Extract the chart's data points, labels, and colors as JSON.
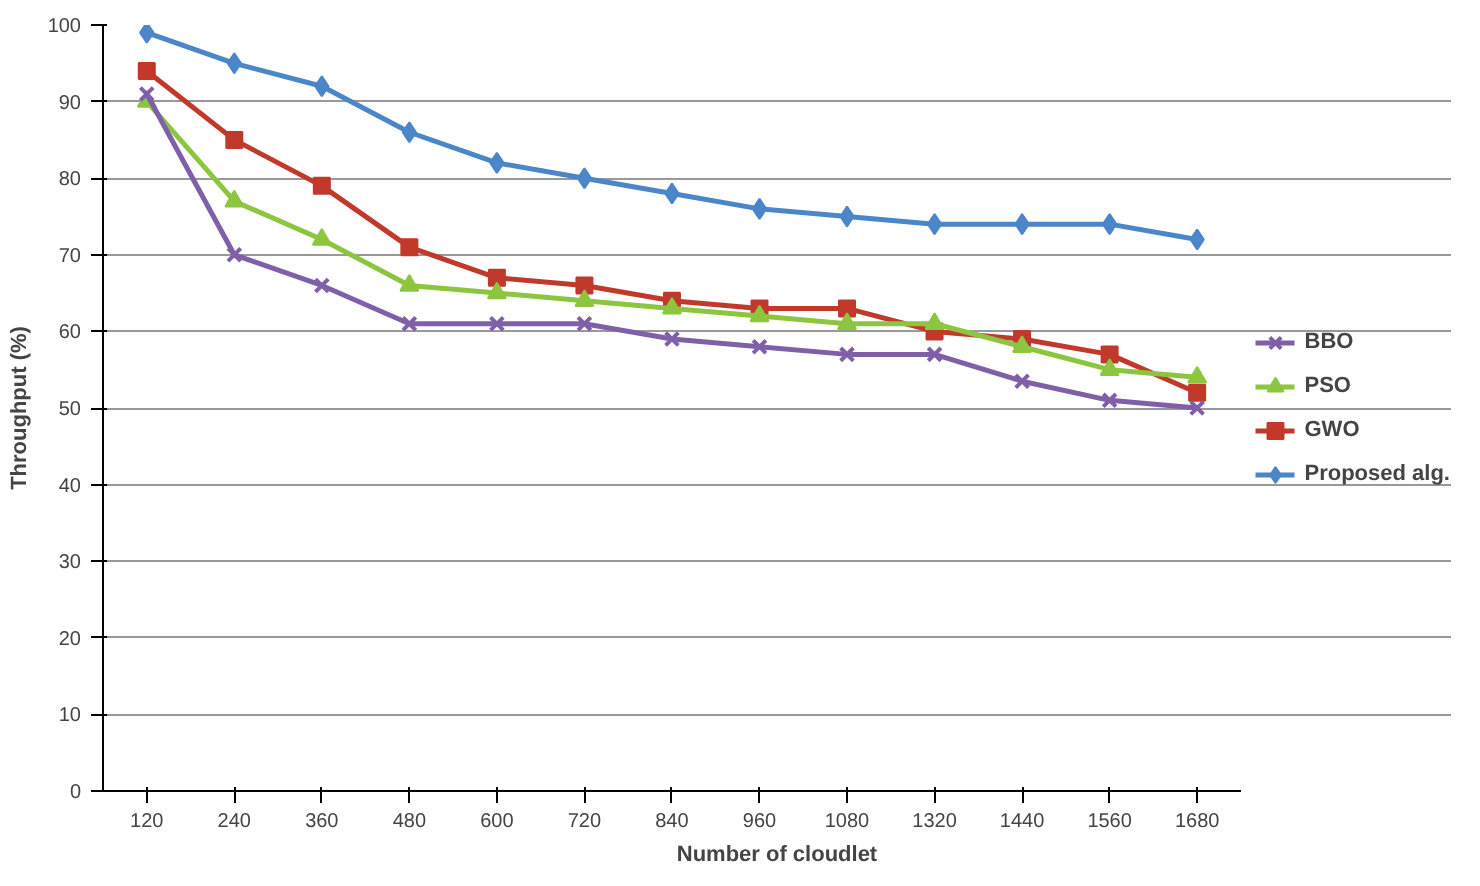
{
  "chart_data": {
    "type": "line",
    "xlabel": "Number of cloudlet",
    "ylabel": "Throughput (%)",
    "categories": [
      "120",
      "240",
      "360",
      "480",
      "600",
      "720",
      "840",
      "960",
      "1080",
      "1320",
      "1440",
      "1560",
      "1680"
    ],
    "ylim": [
      0,
      100
    ],
    "yticks": [
      0,
      10,
      20,
      30,
      40,
      50,
      60,
      70,
      80,
      90,
      100
    ],
    "grid": "y",
    "legend": "right",
    "series": [
      {
        "name": "BBO",
        "color": "#7f5fa8",
        "marker": "cross",
        "values": [
          91,
          70,
          66,
          61,
          61,
          61,
          59,
          58,
          57,
          57,
          53.5,
          51,
          50
        ]
      },
      {
        "name": "PSO",
        "color": "#8cc63f",
        "marker": "triangle",
        "values": [
          90,
          77,
          72,
          66,
          65,
          64,
          63,
          62,
          61,
          61,
          58,
          55,
          54
        ]
      },
      {
        "name": "GWO",
        "color": "#c0392b",
        "marker": "square",
        "values": [
          94,
          85,
          79,
          71,
          67,
          66,
          64,
          63,
          63,
          60,
          59,
          57,
          52
        ]
      },
      {
        "name": "Proposed alg.",
        "color": "#4a86c8",
        "marker": "diamond",
        "values": [
          99,
          95,
          92,
          86,
          82,
          80,
          78,
          76,
          75,
          74,
          74,
          74,
          72
        ]
      }
    ]
  }
}
